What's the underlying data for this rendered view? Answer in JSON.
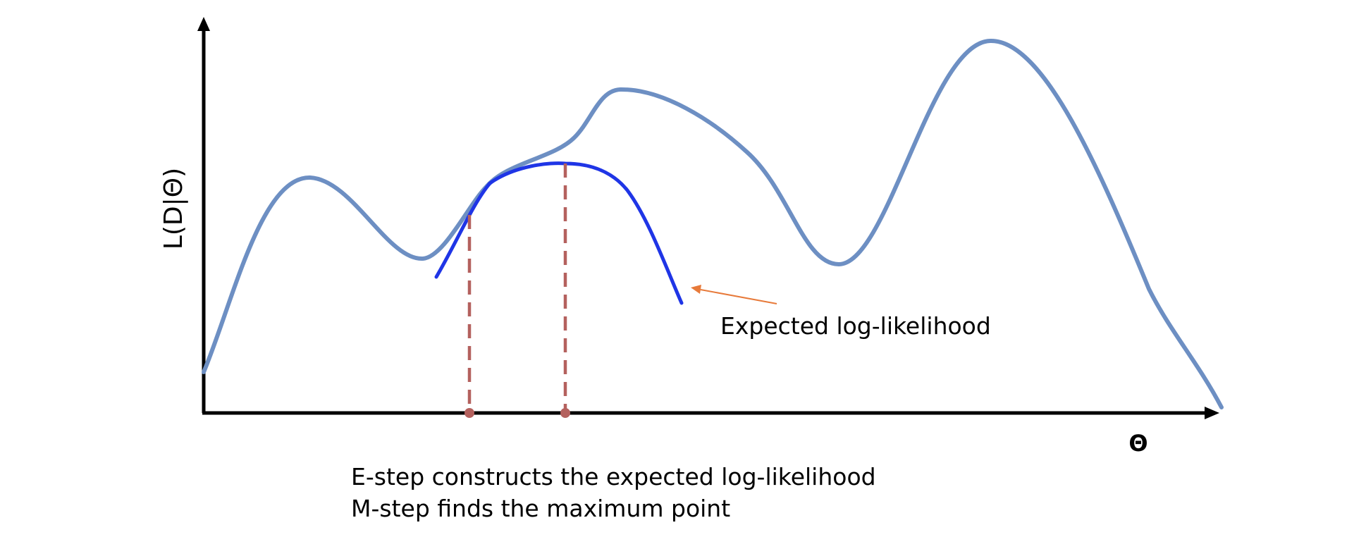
{
  "axes": {
    "y_label": "L(D|Θ)",
    "x_label": "Θ"
  },
  "annotation": {
    "callout_label": "Expected log-likelihood"
  },
  "caption": {
    "line_1": "E-step constructs the expected log-likelihood",
    "line_2": "M-step finds the maximum point"
  },
  "colors": {
    "likelihood_curve": "#6d8fc3",
    "expected_curve": "#1f35e6",
    "dashed_markers": "#b4615e",
    "callout_arrow": "#e77a3a",
    "axes": "#000000"
  }
}
